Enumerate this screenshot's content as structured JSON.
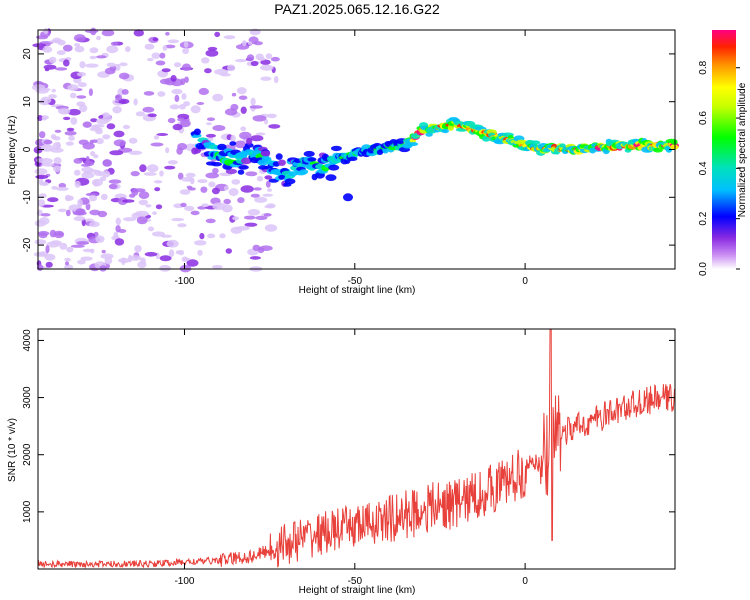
{
  "title": "PAZ1.2025.065.12.16.G22",
  "chart_data": [
    {
      "type": "heatmap",
      "xlabel": "Height of straight line (km)",
      "ylabel": "Frequency (Hz)",
      "xlim": [
        -143,
        44
      ],
      "ylim": [
        -25,
        25
      ],
      "xticks": [
        -100,
        -50,
        0
      ],
      "yticks": [
        -20,
        -10,
        0,
        10,
        20
      ],
      "colorbar": {
        "label": "Normalized spectral amplitude",
        "range": [
          0,
          0.95
        ],
        "ticks": [
          0.0,
          0.2,
          0.4,
          0.6,
          0.8
        ]
      },
      "ridge": {
        "x": [
          -97,
          -90,
          -85,
          -80,
          -75,
          -70,
          -65,
          -60,
          -55,
          -50,
          -45,
          -40,
          -35,
          -30,
          -25,
          -20,
          -15,
          -10,
          -5,
          0,
          5,
          10,
          15,
          20,
          30,
          44
        ],
        "y": [
          2.5,
          -1,
          -2,
          -1,
          -3,
          -5,
          -3,
          -4,
          -2,
          -1,
          0,
          0.5,
          1,
          4,
          4.5,
          5.5,
          4,
          3,
          2,
          1,
          0,
          0.5,
          0,
          0.5,
          0.8,
          1
        ]
      }
    },
    {
      "type": "line",
      "xlabel": "Height of straight line (km)",
      "ylabel": "SNR (10 * v/v)",
      "xlim": [
        -143,
        44
      ],
      "ylim": [
        0,
        4200
      ],
      "xticks": [
        -100,
        -50,
        0
      ],
      "yticks": [
        1000,
        2000,
        3000,
        4000
      ],
      "color": "#e8403a",
      "trend": {
        "x": [
          -143,
          -110,
          -90,
          -80,
          -70,
          -60,
          -50,
          -40,
          -30,
          -20,
          -10,
          0,
          5,
          10,
          20,
          30,
          40,
          44
        ],
        "y": [
          80,
          90,
          150,
          220,
          450,
          620,
          750,
          850,
          1050,
          1150,
          1400,
          1700,
          1900,
          2350,
          2600,
          2850,
          3000,
          3000
        ]
      },
      "spike": {
        "x": 7.5,
        "max": 4200,
        "min": 500
      }
    }
  ]
}
